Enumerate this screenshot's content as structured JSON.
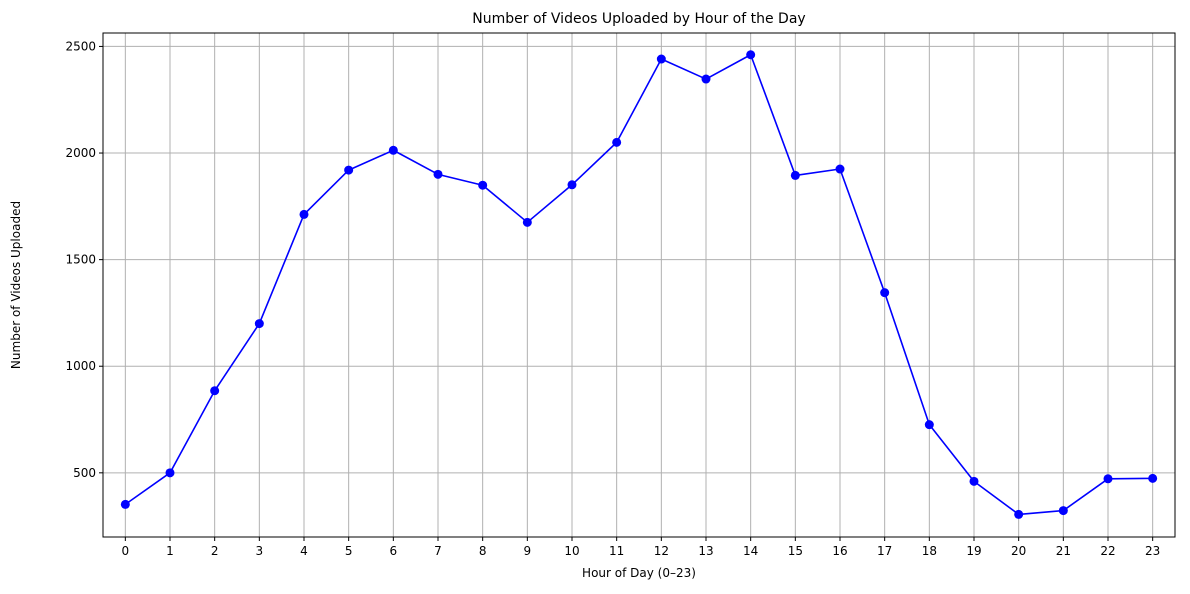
{
  "chart_data": {
    "type": "line",
    "title": "Number of Videos Uploaded by Hour of the Day",
    "xlabel": "Hour of Day (0–23)",
    "ylabel": "Number of Videos Uploaded",
    "x": [
      0,
      1,
      2,
      3,
      4,
      5,
      6,
      7,
      8,
      9,
      10,
      11,
      12,
      13,
      14,
      15,
      16,
      17,
      18,
      19,
      20,
      21,
      22,
      23
    ],
    "x_ticks": [
      "0",
      "1",
      "2",
      "3",
      "4",
      "5",
      "6",
      "7",
      "8",
      "9",
      "10",
      "11",
      "12",
      "13",
      "14",
      "15",
      "16",
      "17",
      "18",
      "19",
      "20",
      "21",
      "22",
      "23"
    ],
    "y_ticks": [
      500,
      1000,
      1500,
      2000,
      2500
    ],
    "y_tick_labels": [
      "500",
      "1000",
      "1500",
      "2000",
      "2500"
    ],
    "ylim": [
      199,
      2563
    ],
    "xlim": [
      -0.5,
      23.5
    ],
    "grid": true,
    "series": [
      {
        "values": [
          352,
          500,
          885,
          1200,
          1712,
          1920,
          2013,
          1900,
          1849,
          1675,
          1851,
          2050,
          2441,
          2347,
          2461,
          1895,
          1925,
          1345,
          726,
          460,
          305,
          323,
          472,
          474
        ],
        "color": "#0000ff",
        "marker": "circle"
      }
    ],
    "colors": {
      "grid": "#b0b0b0",
      "axis": "#000000",
      "line": "#0000ff"
    }
  }
}
